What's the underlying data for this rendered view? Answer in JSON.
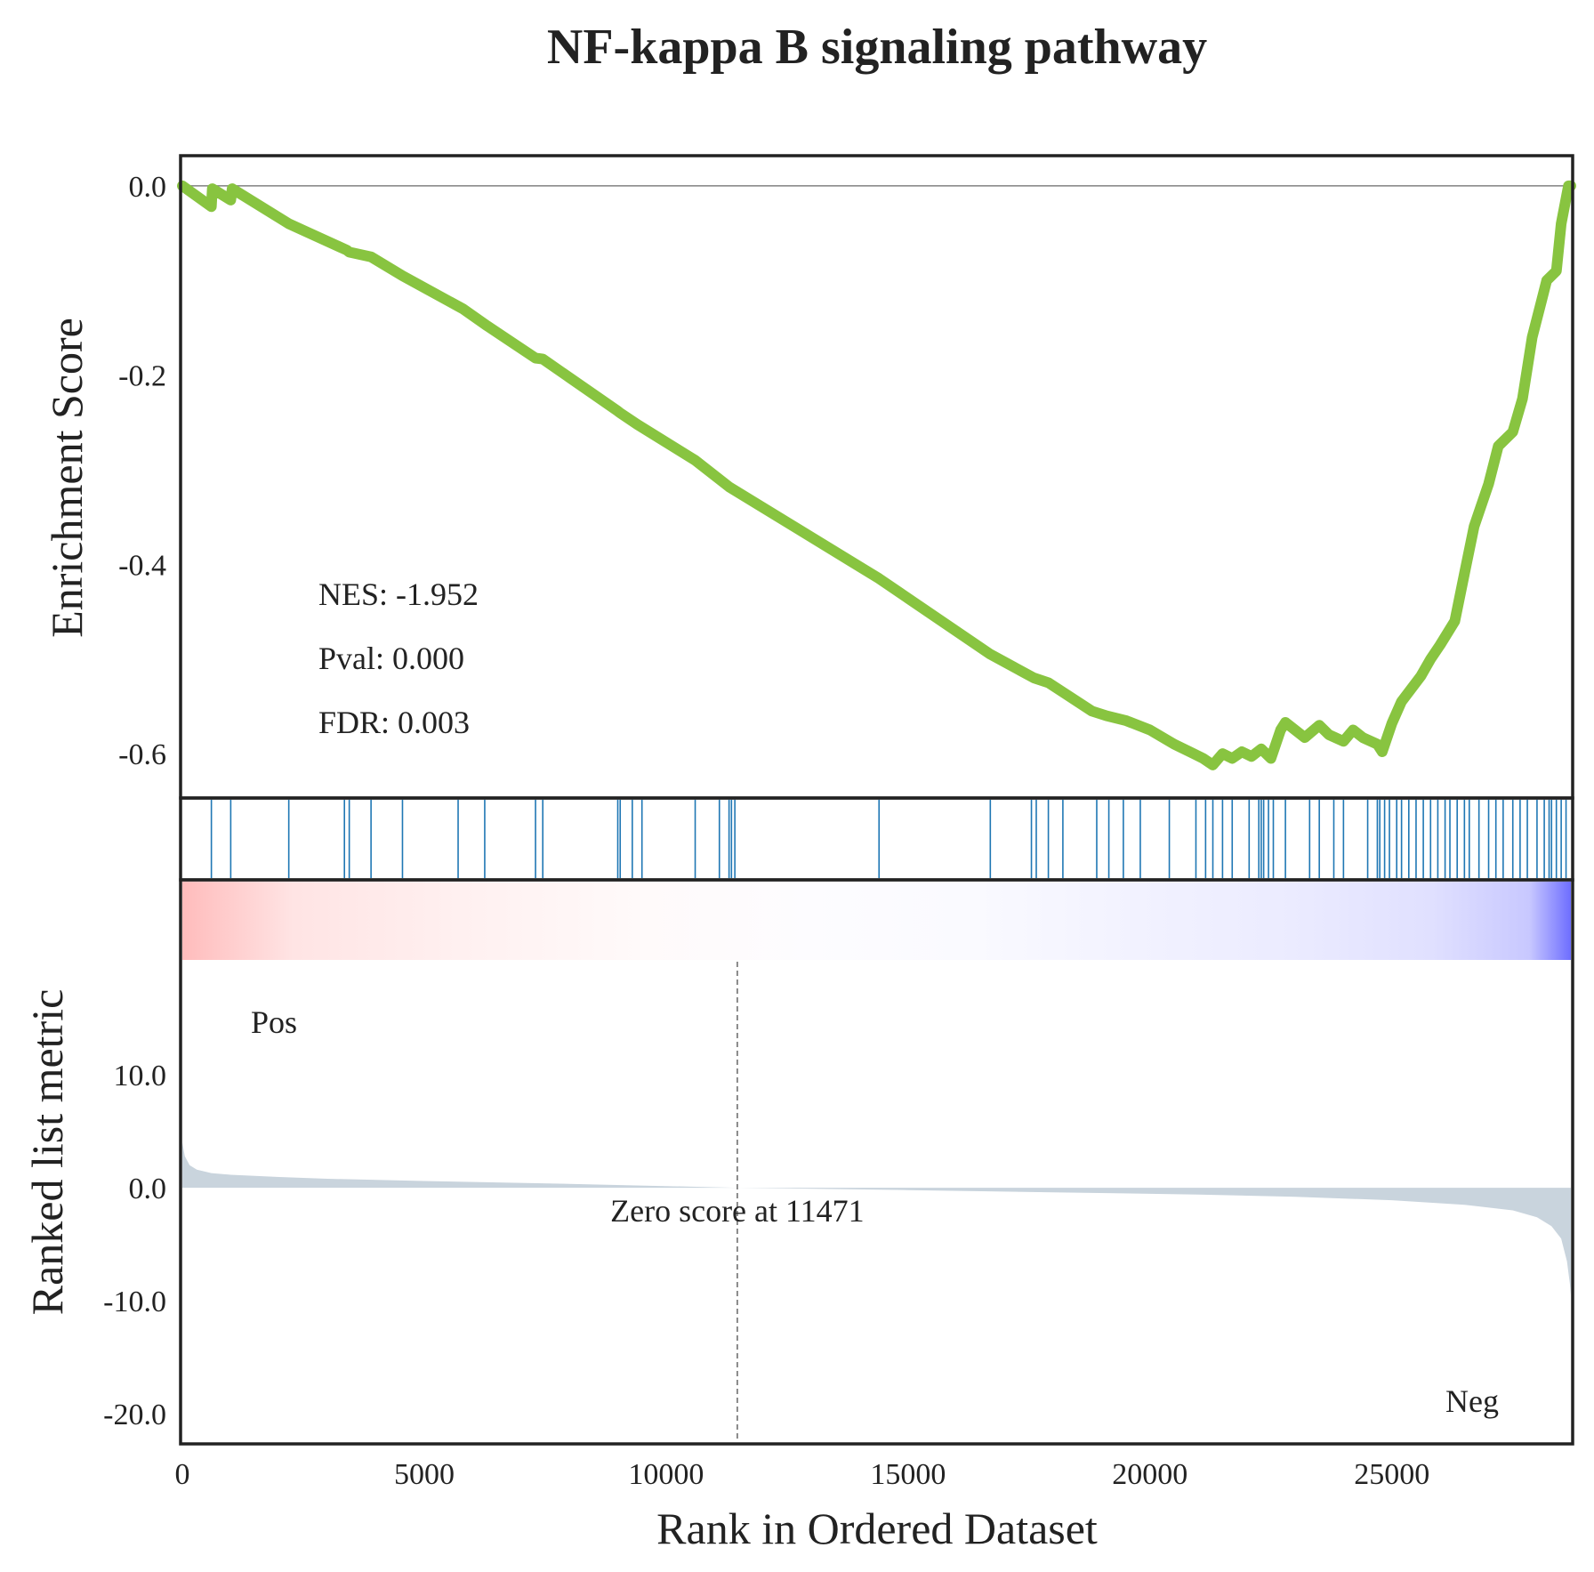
{
  "chart_data": {
    "type": "line",
    "title": "NF-kappa B signaling pathway",
    "xlabel": "Rank in Ordered Dataset",
    "xlim": [
      0,
      28700
    ],
    "xticks": [
      0,
      5000,
      10000,
      15000,
      20000,
      25000
    ],
    "xtick_labels": [
      "0",
      "5000",
      "10000",
      "15000",
      "20000",
      "25000"
    ],
    "colors": {
      "es_line": "#88c440",
      "hits": "#1f77b4",
      "metric_fill": "#c9d4dd",
      "pos": "#ff0000",
      "neg": "#0000ff",
      "zero_line": "#808080"
    },
    "enrichment": {
      "ylabel": "Enrichment Score",
      "ylim": [
        -0.645,
        0.03
      ],
      "yticks": [
        0.0,
        -0.2,
        -0.4,
        -0.6
      ],
      "ytick_labels": [
        "0.0",
        "-0.2",
        "-0.4",
        "-0.6"
      ],
      "stats": [
        "NES: -1.952",
        "Pval: 0.000",
        "FDR: 0.003"
      ],
      "x": [
        0,
        600,
        620,
        1000,
        1030,
        2200,
        3400,
        3450,
        3900,
        4550,
        5800,
        6300,
        7300,
        7450,
        9000,
        9050,
        9400,
        10600,
        11300,
        14400,
        16700,
        17600,
        17900,
        18200,
        18800,
        19100,
        19500,
        20000,
        20500,
        20900,
        21100,
        21300,
        21500,
        21700,
        21900,
        22100,
        22300,
        22500,
        22700,
        22800,
        23200,
        23500,
        23700,
        24000,
        24200,
        24400,
        24700,
        24800,
        25000,
        25200,
        25600,
        25800,
        26000,
        26300,
        26500,
        26700,
        27000,
        27200,
        27500,
        27700,
        27900,
        28100,
        28200,
        28400,
        28500,
        28650,
        28700
      ],
      "y": [
        0.0,
        -0.022,
        -0.003,
        -0.015,
        -0.003,
        -0.04,
        -0.068,
        -0.07,
        -0.075,
        -0.095,
        -0.13,
        -0.148,
        -0.182,
        -0.183,
        -0.238,
        -0.24,
        -0.252,
        -0.29,
        -0.318,
        -0.415,
        -0.495,
        -0.52,
        -0.525,
        -0.535,
        -0.555,
        -0.56,
        -0.565,
        -0.575,
        -0.59,
        -0.6,
        -0.605,
        -0.612,
        -0.6,
        -0.605,
        -0.598,
        -0.603,
        -0.595,
        -0.605,
        -0.575,
        -0.567,
        -0.583,
        -0.57,
        -0.58,
        -0.587,
        -0.575,
        -0.583,
        -0.59,
        -0.598,
        -0.568,
        -0.545,
        -0.518,
        -0.5,
        -0.485,
        -0.46,
        -0.41,
        -0.36,
        -0.315,
        -0.275,
        -0.26,
        -0.225,
        -0.16,
        -0.12,
        -0.1,
        -0.09,
        -0.04,
        0.0,
        0.0
      ]
    },
    "hits": [
      600,
      1000,
      2200,
      3350,
      3450,
      3900,
      4550,
      5700,
      6250,
      7300,
      7450,
      9000,
      9050,
      9300,
      9500,
      10600,
      11100,
      11300,
      11350,
      11420,
      14400,
      16700,
      17550,
      17650,
      17900,
      18200,
      18900,
      19150,
      19450,
      19800,
      20400,
      20950,
      21150,
      21300,
      21500,
      21700,
      22050,
      22250,
      22300,
      22350,
      22450,
      22550,
      22800,
      23300,
      23500,
      23800,
      24000,
      24500,
      24700,
      24750,
      24850,
      24950,
      25100,
      25200,
      25350,
      25500,
      25650,
      25800,
      25950,
      26100,
      26200,
      26350,
      26500,
      26600,
      26800,
      27000,
      27150,
      27300,
      27500,
      27650,
      27800,
      28000,
      28150,
      28250,
      28300,
      28400,
      28500,
      28600
    ],
    "metric": {
      "ylabel": "Ranked list metric",
      "ylim": [
        -22.5,
        20
      ],
      "yticks": [
        10.0,
        0.0,
        -10.0,
        -20.0
      ],
      "ytick_labels": [
        "10.0",
        "0.0",
        "-10.0",
        "-20.0"
      ],
      "zero_cross": 11471,
      "zero_label": "Zero score at 11471",
      "pos_label": "Pos",
      "neg_label": "Neg",
      "x": [
        0,
        50,
        150,
        300,
        600,
        1000,
        2000,
        3000,
        5000,
        8000,
        11471,
        15000,
        18000,
        21000,
        23000,
        25000,
        26500,
        27500,
        28000,
        28300,
        28500,
        28620,
        28680,
        28700
      ],
      "values": [
        4.0,
        2.8,
        2.0,
        1.6,
        1.3,
        1.15,
        0.95,
        0.8,
        0.6,
        0.35,
        0.0,
        -0.2,
        -0.4,
        -0.6,
        -0.8,
        -1.1,
        -1.5,
        -2.0,
        -2.6,
        -3.4,
        -4.5,
        -6.5,
        -8.5,
        -9.5
      ]
    }
  }
}
